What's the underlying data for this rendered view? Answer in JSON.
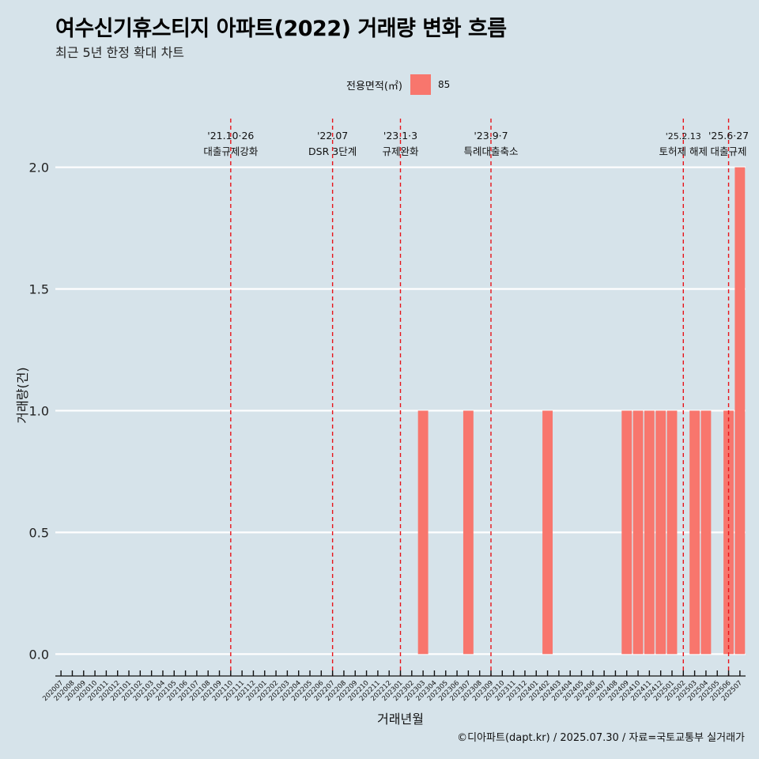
{
  "title": "여수신기휴스티지 아파트(2022) 거래량 변화 흐름",
  "subtitle": "최근 5년 한정 확대 차트",
  "legend": {
    "title": "전용면적(㎡)",
    "item": "85",
    "color": "#F8766D"
  },
  "caption": "©디아파트(dapt.kr) / 2025.07.30 / 자료=국토교통부 실거래가",
  "chart_data": {
    "type": "bar",
    "xlabel": "거래년월",
    "ylabel": "거래량(건)",
    "ylim": [
      -0.09,
      2.2
    ],
    "yticks": [
      0.0,
      0.5,
      1.0,
      1.5,
      2.0
    ],
    "ytick_labels": [
      "0.0",
      "0.5",
      "1.0",
      "1.5",
      "2.0"
    ],
    "grid": "horizontal",
    "legend_position": "top",
    "categories": [
      "202007",
      "202008",
      "202009",
      "202010",
      "202011",
      "202012",
      "202101",
      "202102",
      "202103",
      "202104",
      "202105",
      "202106",
      "202107",
      "202108",
      "202109",
      "202110",
      "202111",
      "202112",
      "202201",
      "202202",
      "202203",
      "202204",
      "202205",
      "202206",
      "202207",
      "202208",
      "202209",
      "202210",
      "202211",
      "202212",
      "202301",
      "202302",
      "202303",
      "202304",
      "202305",
      "202306",
      "202307",
      "202308",
      "202309",
      "202310",
      "202311",
      "202312",
      "202401",
      "202402",
      "202403",
      "202404",
      "202405",
      "202406",
      "202407",
      "202408",
      "202409",
      "202410",
      "202411",
      "202412",
      "202501",
      "202502",
      "202503",
      "202504",
      "202505",
      "202506",
      "202507"
    ],
    "series": [
      {
        "name": "85",
        "values": [
          0,
          0,
          0,
          0,
          0,
          0,
          0,
          0,
          0,
          0,
          0,
          0,
          0,
          0,
          0,
          0,
          0,
          0,
          0,
          0,
          0,
          0,
          0,
          0,
          0,
          0,
          0,
          0,
          0,
          0,
          0,
          0,
          1,
          0,
          0,
          0,
          1,
          0,
          0,
          0,
          0,
          0,
          0,
          1,
          0,
          0,
          0,
          0,
          0,
          0,
          1,
          1,
          1,
          1,
          1,
          0,
          1,
          1,
          0,
          1,
          2
        ]
      }
    ],
    "annotations": [
      {
        "at": "202110",
        "date": "'21.10·26",
        "label": "대출규제강화"
      },
      {
        "at": "202207",
        "date": "'22.07",
        "label": "DSR 3단계"
      },
      {
        "at": "202301",
        "date": "'23.1·3",
        "label": "규제완화"
      },
      {
        "at": "202309",
        "date": "'23.9·7",
        "label": "특례대출축소"
      },
      {
        "at": "202502",
        "date": "'25.2.13",
        "label": "토허제 해제"
      },
      {
        "at": "202506",
        "date": "'25.6·27",
        "label": "대출규제"
      }
    ]
  }
}
